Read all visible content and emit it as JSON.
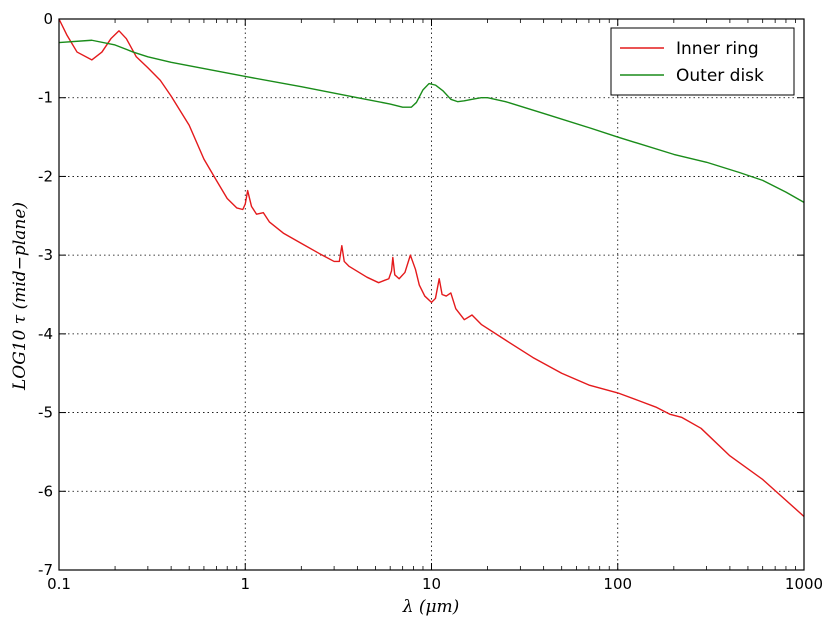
{
  "chart_data": {
    "type": "line",
    "xlabel": "λ (μm)",
    "ylabel": "LOG10 τ (mid−plane)",
    "xscale": "log",
    "xlim": [
      0.1,
      1000
    ],
    "ylim": [
      -7,
      0
    ],
    "xticks": [
      {
        "value": 0.1,
        "label": "0.1"
      },
      {
        "value": 1,
        "label": "1"
      },
      {
        "value": 10,
        "label": "10"
      },
      {
        "value": 100,
        "label": "100"
      },
      {
        "value": 1000,
        "label": "1000"
      }
    ],
    "yticks": [
      {
        "value": 0,
        "label": "0"
      },
      {
        "value": -1,
        "label": "-1"
      },
      {
        "value": -2,
        "label": "-2"
      },
      {
        "value": -3,
        "label": "-3"
      },
      {
        "value": -4,
        "label": "-4"
      },
      {
        "value": -5,
        "label": "-5"
      },
      {
        "value": -6,
        "label": "-6"
      },
      {
        "value": -7,
        "label": "-7"
      }
    ],
    "grid": true,
    "legend_position": "top-right",
    "series": [
      {
        "name": "Inner ring",
        "color": "#e41a1c",
        "points": [
          [
            0.1,
            0.0
          ],
          [
            0.11,
            -0.2
          ],
          [
            0.125,
            -0.42
          ],
          [
            0.15,
            -0.52
          ],
          [
            0.17,
            -0.42
          ],
          [
            0.19,
            -0.25
          ],
          [
            0.21,
            -0.15
          ],
          [
            0.23,
            -0.25
          ],
          [
            0.26,
            -0.48
          ],
          [
            0.3,
            -0.62
          ],
          [
            0.35,
            -0.78
          ],
          [
            0.4,
            -0.98
          ],
          [
            0.5,
            -1.35
          ],
          [
            0.6,
            -1.78
          ],
          [
            0.7,
            -2.05
          ],
          [
            0.8,
            -2.28
          ],
          [
            0.9,
            -2.4
          ],
          [
            0.97,
            -2.42
          ],
          [
            1.0,
            -2.35
          ],
          [
            1.03,
            -2.18
          ],
          [
            1.08,
            -2.38
          ],
          [
            1.15,
            -2.48
          ],
          [
            1.25,
            -2.46
          ],
          [
            1.35,
            -2.58
          ],
          [
            1.6,
            -2.72
          ],
          [
            2.0,
            -2.85
          ],
          [
            2.5,
            -2.98
          ],
          [
            3.0,
            -3.08
          ],
          [
            3.2,
            -3.08
          ],
          [
            3.3,
            -2.88
          ],
          [
            3.4,
            -3.08
          ],
          [
            3.6,
            -3.14
          ],
          [
            4.5,
            -3.28
          ],
          [
            5.2,
            -3.35
          ],
          [
            5.6,
            -3.32
          ],
          [
            5.9,
            -3.3
          ],
          [
            6.1,
            -3.2
          ],
          [
            6.2,
            -3.03
          ],
          [
            6.35,
            -3.25
          ],
          [
            6.7,
            -3.3
          ],
          [
            7.2,
            -3.22
          ],
          [
            7.7,
            -3.0
          ],
          [
            8.2,
            -3.18
          ],
          [
            8.6,
            -3.38
          ],
          [
            9.2,
            -3.52
          ],
          [
            10.0,
            -3.6
          ],
          [
            10.5,
            -3.55
          ],
          [
            11.0,
            -3.3
          ],
          [
            11.4,
            -3.5
          ],
          [
            12.0,
            -3.52
          ],
          [
            12.7,
            -3.48
          ],
          [
            13.5,
            -3.68
          ],
          [
            15.0,
            -3.82
          ],
          [
            16.5,
            -3.76
          ],
          [
            18.5,
            -3.88
          ],
          [
            25,
            -4.08
          ],
          [
            35,
            -4.3
          ],
          [
            50,
            -4.5
          ],
          [
            70,
            -4.65
          ],
          [
            100,
            -4.75
          ],
          [
            130,
            -4.85
          ],
          [
            160,
            -4.93
          ],
          [
            190,
            -5.02
          ],
          [
            220,
            -5.06
          ],
          [
            280,
            -5.2
          ],
          [
            400,
            -5.55
          ],
          [
            600,
            -5.85
          ],
          [
            1000,
            -6.32
          ]
        ]
      },
      {
        "name": "Outer disk",
        "color": "#1a8c1a",
        "points": [
          [
            0.1,
            -0.3
          ],
          [
            0.15,
            -0.27
          ],
          [
            0.2,
            -0.33
          ],
          [
            0.25,
            -0.42
          ],
          [
            0.3,
            -0.48
          ],
          [
            0.4,
            -0.55
          ],
          [
            0.6,
            -0.63
          ],
          [
            1.0,
            -0.73
          ],
          [
            2.0,
            -0.86
          ],
          [
            4.0,
            -1.0
          ],
          [
            6.0,
            -1.08
          ],
          [
            7.0,
            -1.12
          ],
          [
            7.8,
            -1.12
          ],
          [
            8.3,
            -1.06
          ],
          [
            9.0,
            -0.9
          ],
          [
            9.7,
            -0.82
          ],
          [
            10.5,
            -0.84
          ],
          [
            11.5,
            -0.91
          ],
          [
            12.7,
            -1.02
          ],
          [
            13.8,
            -1.05
          ],
          [
            15.0,
            -1.04
          ],
          [
            16.5,
            -1.02
          ],
          [
            18.5,
            -1.0
          ],
          [
            20,
            -1.0
          ],
          [
            25,
            -1.05
          ],
          [
            40,
            -1.2
          ],
          [
            70,
            -1.38
          ],
          [
            100,
            -1.5
          ],
          [
            200,
            -1.72
          ],
          [
            300,
            -1.82
          ],
          [
            450,
            -1.95
          ],
          [
            600,
            -2.05
          ],
          [
            800,
            -2.2
          ],
          [
            1000,
            -2.33
          ]
        ]
      }
    ]
  }
}
